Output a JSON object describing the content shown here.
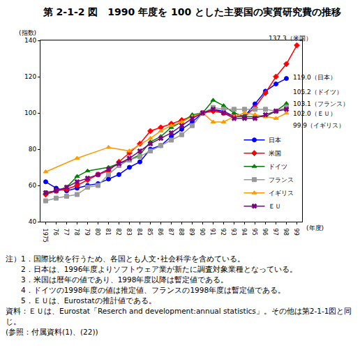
{
  "chart_data": {
    "type": "line",
    "title": "第 2-1-2 図　1990 年度を 100 とした主要国の実質研究費の推移",
    "ylabel": "(指数)",
    "xlabel": "(年度)",
    "x": [
      1975,
      1976,
      1977,
      1978,
      1979,
      1980,
      1981,
      1982,
      1983,
      1984,
      1985,
      1986,
      1987,
      1988,
      1989,
      1990,
      1991,
      1992,
      1993,
      1994,
      1995,
      1996,
      1997,
      1998,
      1999
    ],
    "xlim": [
      1974.5,
      1999.5
    ],
    "xticks": [
      1975,
      {
        "value": 1976,
        "label": "76"
      },
      {
        "value": 1977,
        "label": "77"
      },
      {
        "value": 1978,
        "label": "78"
      },
      {
        "value": 1979,
        "label": "79"
      },
      {
        "value": 1980,
        "label": "80"
      },
      {
        "value": 1981,
        "label": "81"
      },
      {
        "value": 1982,
        "label": "82"
      },
      {
        "value": 1983,
        "label": "83"
      },
      {
        "value": 1984,
        "label": "84"
      },
      {
        "value": 1985,
        "label": "85"
      },
      {
        "value": 1986,
        "label": "86"
      },
      {
        "value": 1987,
        "label": "87"
      },
      {
        "value": 1988,
        "label": "88"
      },
      {
        "value": 1989,
        "label": "89"
      },
      {
        "value": 1990,
        "label": "90"
      },
      {
        "value": 1991,
        "label": "91"
      },
      {
        "value": 1992,
        "label": "92"
      },
      {
        "value": 1993,
        "label": "93"
      },
      {
        "value": 1994,
        "label": "94"
      },
      {
        "value": 1995,
        "label": "95"
      },
      {
        "value": 1996,
        "label": "96"
      },
      {
        "value": 1997,
        "label": "97"
      },
      {
        "value": 1998,
        "label": "98"
      },
      {
        "value": 1999,
        "label": "99"
      }
    ],
    "ylim": [
      40,
      140
    ],
    "yticks": [
      40,
      60,
      80,
      100,
      120,
      140
    ],
    "grid": false,
    "legend": "lower right",
    "series": [
      {
        "name": "日本",
        "color": "#0000ff",
        "marker": "circle",
        "values": [
          62,
          58.5,
          57,
          58.5,
          60,
          61,
          63.5,
          66,
          70,
          73,
          80,
          82,
          87,
          91,
          95,
          100,
          102,
          101,
          98,
          98,
          105,
          112,
          116,
          119.0,
          null
        ]
      },
      {
        "name": "米国",
        "color": "#ff0000",
        "marker": "diamond",
        "values": [
          55,
          57,
          58,
          60,
          63,
          66,
          68,
          73,
          78,
          83,
          90,
          92,
          94,
          96,
          98,
          100,
          101,
          100,
          98,
          98,
          103,
          111,
          120,
          127,
          137.3
        ]
      },
      {
        "name": "ドイツ",
        "color": "#008000",
        "marker": "triangle-up",
        "values": [
          56,
          57,
          59,
          65,
          68,
          null,
          70,
          72,
          74,
          77,
          84,
          87,
          92,
          95,
          99,
          100,
          107,
          104,
          100,
          98,
          98,
          98,
          101,
          105.2,
          null
        ]
      },
      {
        "name": "フランス",
        "color": "#999999",
        "marker": "square",
        "values": [
          51.5,
          53,
          54,
          55,
          59,
          60,
          66,
          71,
          74,
          76,
          79,
          82,
          85,
          88,
          93,
          100,
          103,
          102,
          102,
          102,
          102,
          102,
          101,
          103.1,
          null
        ]
      },
      {
        "name": "イギリス",
        "color": "#ff9900",
        "marker": "triangle-up",
        "values": [
          67.5,
          null,
          null,
          75,
          null,
          null,
          81,
          null,
          79,
          null,
          86,
          90,
          93,
          95,
          98,
          100,
          95,
          95,
          98,
          100,
          99,
          98,
          97,
          99.9,
          null
        ]
      },
      {
        "name": "ＥＵ",
        "color": "#800080",
        "marker": "x",
        "values": [
          56,
          57,
          59,
          62,
          64,
          66,
          69,
          72,
          75,
          79,
          83,
          86,
          89,
          93,
          97,
          100,
          102,
          100,
          97,
          97,
          97,
          99,
          101,
          102.0,
          null
        ]
      }
    ],
    "annotations": [
      {
        "text": "137.3（米国）",
        "x": 1999,
        "y": 137.3
      },
      {
        "text": "119.0（日本）",
        "x": 1998,
        "y": 119.0
      },
      {
        "text": "105.2（ドイツ）",
        "x": 1998,
        "y": 105.2
      },
      {
        "text": "103.1（フランス）",
        "x": 1998,
        "y": 103.1
      },
      {
        "text": "102.0（ＥＵ）",
        "x": 1998,
        "y": 102.0
      },
      {
        "text": "99.9（イギリス）",
        "x": 1998,
        "y": 99.9
      }
    ],
    "notes": [
      "注）1．国際比較を行うため、各国とも人文･社会科学を含めている。",
      "　　2．日本は、1996年度よりソフトウェア業が新たに調査対象業種となっている。",
      "　　3．米国は暦年の値であり、1998年度以降は暫定値である。",
      "　　4．ドイツの1998年度の値は推定値、フランスの1998年度は暫定値である。",
      "　　5．ＥＵは、Eurostatの推計値である。",
      "資料：ＥＵは、Eurostat「Reserch and development:annual statistics」。その他は第2-1-1図と同じ。",
      "(参照：付属資料(1)、(22))"
    ]
  }
}
